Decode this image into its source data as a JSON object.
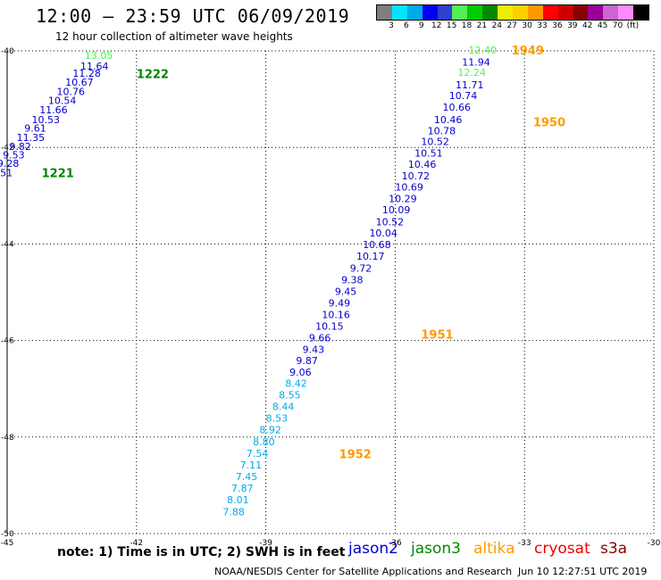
{
  "header": {
    "title": "12:00 — 23:59 UTC 06/09/2019",
    "subtitle": "12 hour collection of altimeter wave heights"
  },
  "colorbar": {
    "colors": [
      "#7f7f7f",
      "#00e5ff",
      "#00a9e8",
      "#0000ee",
      "#2f3fd0",
      "#55ee55",
      "#00cc00",
      "#008800",
      "#eeee00",
      "#ffd000",
      "#ff9900",
      "#ff0000",
      "#cc0000",
      "#880000",
      "#990099",
      "#cc66cc",
      "#ff88ff",
      "#000000"
    ],
    "labels": [
      "3",
      "6",
      "9",
      "12",
      "15",
      "18",
      "21",
      "24",
      "27",
      "30",
      "33",
      "36",
      "39",
      "42",
      "45",
      "70",
      "(ft)"
    ],
    "unit": "(ft)"
  },
  "map": {
    "lon_ticks": [
      "-45",
      "-42",
      "-39",
      "-36",
      "-33",
      "-30"
    ],
    "lat_ticks": [
      "-40",
      "-42",
      "-44",
      "-46",
      "-48",
      "-50"
    ],
    "time_labels": [
      {
        "text": "1222",
        "lon": -42.0,
        "lat": -40.47,
        "color": "#008800"
      },
      {
        "text": "1221",
        "lon": -44.2,
        "lat": -42.52,
        "color": "#008800"
      },
      {
        "text": "1949",
        "lon": -33.3,
        "lat": -39.98,
        "color": "#ff9900"
      },
      {
        "text": "1950",
        "lon": -32.8,
        "lat": -41.47,
        "color": "#ff9900"
      },
      {
        "text": "1951",
        "lon": -35.4,
        "lat": -45.87,
        "color": "#ff9900"
      },
      {
        "text": "1952",
        "lon": -37.3,
        "lat": -48.35,
        "color": "#ff9900"
      }
    ],
    "tracks": [
      {
        "name": "jason3",
        "color": "#55ee55",
        "points": [
          {
            "v": "13.05",
            "lon": -43.2,
            "lat": -40.09
          },
          {
            "v": "12.40",
            "lon": -34.3,
            "lat": -39.98
          },
          {
            "v": "12.24",
            "lon": -34.55,
            "lat": -40.44
          }
        ]
      },
      {
        "name": "jason2",
        "color": "#0000cc",
        "points": [
          {
            "v": "11.64",
            "lon": -43.3,
            "lat": -40.31
          },
          {
            "v": "11.28",
            "lon": -43.48,
            "lat": -40.46
          },
          {
            "v": "10.67",
            "lon": -43.65,
            "lat": -40.65
          },
          {
            "v": "10.76",
            "lon": -43.85,
            "lat": -40.84
          },
          {
            "v": "10.54",
            "lon": -44.05,
            "lat": -41.03
          },
          {
            "v": "11.66",
            "lon": -44.25,
            "lat": -41.22
          },
          {
            "v": "10.53",
            "lon": -44.43,
            "lat": -41.42
          },
          {
            "v": "9.61",
            "lon": -44.6,
            "lat": -41.6
          },
          {
            "v": "11.35",
            "lon": -44.78,
            "lat": -41.79
          },
          {
            "v": "9.82",
            "lon": -44.95,
            "lat": -41.98
          },
          {
            "v": "9.53",
            "lon": -45.1,
            "lat": -42.15
          },
          {
            "v": "9.28",
            "lon": -45.23,
            "lat": -42.33
          },
          {
            "v": "9.51",
            "lon": -45.38,
            "lat": -42.52
          },
          {
            "v": "11.94",
            "lon": -34.45,
            "lat": -40.23
          },
          {
            "v": "11.71",
            "lon": -34.6,
            "lat": -40.7
          },
          {
            "v": "10.74",
            "lon": -34.75,
            "lat": -40.92
          },
          {
            "v": "10.66",
            "lon": -34.9,
            "lat": -41.16
          },
          {
            "v": "10.46",
            "lon": -35.1,
            "lat": -41.42
          },
          {
            "v": "10.78",
            "lon": -35.25,
            "lat": -41.65
          },
          {
            "v": "10.52",
            "lon": -35.4,
            "lat": -41.88
          },
          {
            "v": "10.51",
            "lon": -35.55,
            "lat": -42.12
          },
          {
            "v": "10.46",
            "lon": -35.7,
            "lat": -42.35
          },
          {
            "v": "10.72",
            "lon": -35.85,
            "lat": -42.59
          },
          {
            "v": "10.69",
            "lon": -36.0,
            "lat": -42.82
          },
          {
            "v": "10.29",
            "lon": -36.15,
            "lat": -43.06
          },
          {
            "v": "10.09",
            "lon": -36.3,
            "lat": -43.29
          },
          {
            "v": "10.52",
            "lon": -36.45,
            "lat": -43.54
          },
          {
            "v": "10.04",
            "lon": -36.6,
            "lat": -43.77
          },
          {
            "v": "10.68",
            "lon": -36.75,
            "lat": -44.01
          },
          {
            "v": "10.17",
            "lon": -36.9,
            "lat": -44.25
          },
          {
            "v": "9.72",
            "lon": -37.05,
            "lat": -44.5
          },
          {
            "v": "9.38",
            "lon": -37.25,
            "lat": -44.74
          },
          {
            "v": "9.45",
            "lon": -37.4,
            "lat": -44.98
          },
          {
            "v": "9.49",
            "lon": -37.55,
            "lat": -45.22
          },
          {
            "v": "10.16",
            "lon": -37.7,
            "lat": -45.46
          },
          {
            "v": "10.15",
            "lon": -37.85,
            "lat": -45.7
          },
          {
            "v": "9.66",
            "lon": -38.0,
            "lat": -45.94
          },
          {
            "v": "9.43",
            "lon": -38.15,
            "lat": -46.18
          },
          {
            "v": "9.87",
            "lon": -38.3,
            "lat": -46.41
          },
          {
            "v": "9.06",
            "lon": -38.45,
            "lat": -46.65
          }
        ]
      },
      {
        "name": "sentinel",
        "color": "#00a9e8",
        "points": [
          {
            "v": "8.42",
            "lon": -38.55,
            "lat": -46.89
          },
          {
            "v": "8.55",
            "lon": -38.7,
            "lat": -47.13
          },
          {
            "v": "8.44",
            "lon": -38.85,
            "lat": -47.37
          },
          {
            "v": "8.53",
            "lon": -39.0,
            "lat": -47.61
          },
          {
            "v": "8.92",
            "lon": -39.15,
            "lat": -47.85
          },
          {
            "v": "8.80",
            "lon": -39.3,
            "lat": -48.1
          },
          {
            "v": "7.54",
            "lon": -39.45,
            "lat": -48.34
          },
          {
            "v": "7.11",
            "lon": -39.6,
            "lat": -48.58
          },
          {
            "v": "7.45",
            "lon": -39.7,
            "lat": -48.82
          },
          {
            "v": "7.87",
            "lon": -39.8,
            "lat": -49.06
          },
          {
            "v": "8.01",
            "lon": -39.9,
            "lat": -49.3
          },
          {
            "v": "7.88",
            "lon": -40.0,
            "lat": -49.55
          }
        ]
      }
    ]
  },
  "footer": {
    "note": "note:  1) Time is in UTC;  2) SWH is in feet",
    "legend": [
      {
        "label": "jason2",
        "color": "#0000cc"
      },
      {
        "label": "jason3",
        "color": "#008800"
      },
      {
        "label": "altika",
        "color": "#ff9900"
      },
      {
        "label": "cryosat",
        "color": "#ee0000"
      },
      {
        "label": "s3a",
        "color": "#880000"
      }
    ],
    "credit": "NOAA/NESDIS Center for Satellite Applications and Research",
    "timestamp": "Jun 10 12:27:51 UTC 2019"
  }
}
